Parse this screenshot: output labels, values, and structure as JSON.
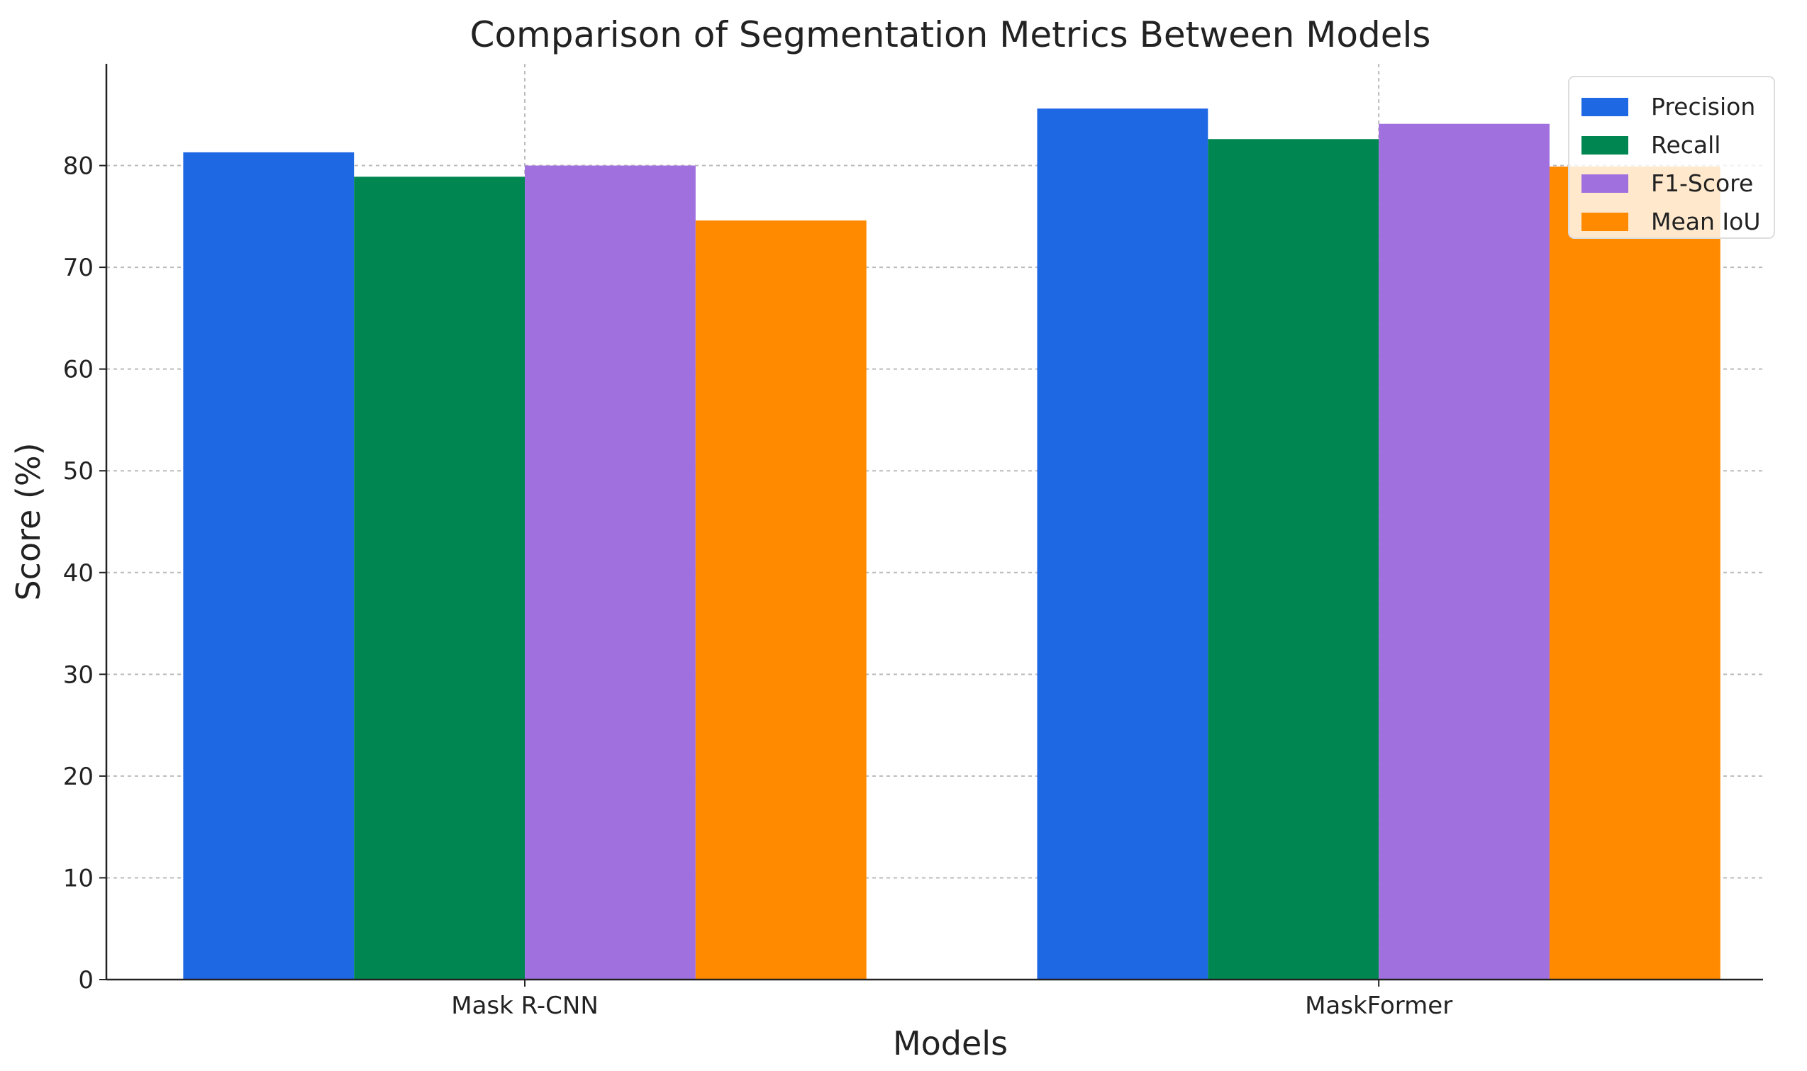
{
  "chart_data": {
    "type": "bar",
    "title": "Comparison of Segmentation Metrics Between Models",
    "xlabel": "Models",
    "ylabel": "Score (%)",
    "categories": [
      "Mask R-CNN",
      "MaskFormer"
    ],
    "series": [
      {
        "name": "Precision",
        "values": [
          81.3,
          85.6
        ],
        "color": "#1f68e3"
      },
      {
        "name": "Recall",
        "values": [
          78.9,
          82.6
        ],
        "color": "#008751"
      },
      {
        "name": "F1-Score",
        "values": [
          80.0,
          84.1
        ],
        "color": "#a070de"
      },
      {
        "name": "Mean IoU",
        "values": [
          74.6,
          79.9
        ],
        "color": "#ff8a00"
      }
    ],
    "ylim": [
      0,
      90
    ],
    "yticks": [
      0,
      10,
      20,
      30,
      40,
      50,
      60,
      70,
      80
    ],
    "grid": true,
    "legend": "top-right"
  }
}
